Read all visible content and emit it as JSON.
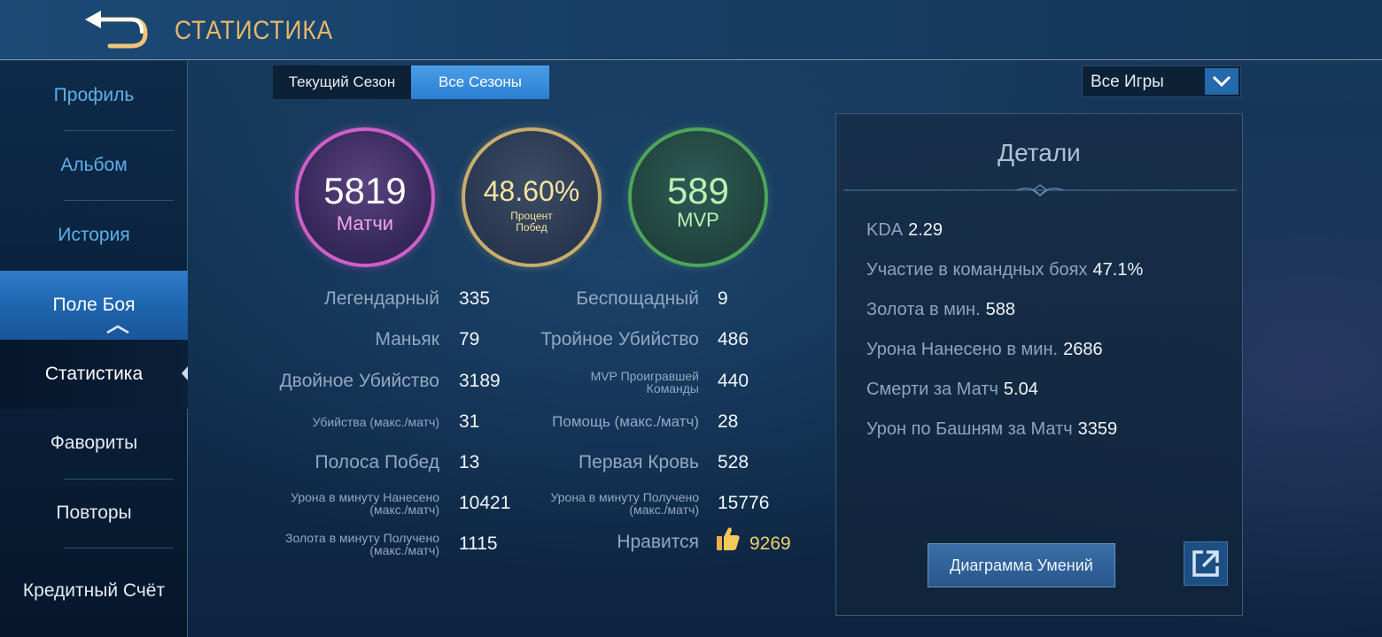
{
  "header": {
    "title": "Статистика",
    "back_icon": "back-arrow-icon"
  },
  "sidebar": {
    "items": [
      {
        "label": "Профиль"
      },
      {
        "label": "Альбом"
      },
      {
        "label": "История"
      },
      {
        "label": "Поле Боя"
      },
      {
        "label": "Статистика"
      },
      {
        "label": "Фавориты"
      },
      {
        "label": "Повторы"
      },
      {
        "label": "Кредитный Счёт"
      }
    ]
  },
  "tabs": [
    {
      "label": "Текущий Сезон",
      "active": false
    },
    {
      "label": "Все Сезоны",
      "active": true
    }
  ],
  "filter": {
    "value": "Все Игры"
  },
  "summary": {
    "matches": {
      "value": "5819",
      "label": "Матчи",
      "color": "#d05fc8"
    },
    "winrate": {
      "value": "48.60%",
      "label_line1": "Процент",
      "label_line2": "Побед",
      "color": "#c9ae6b"
    },
    "mvp": {
      "value": "589",
      "label": "MVP",
      "color": "#4ea55a"
    }
  },
  "stats": {
    "left": [
      {
        "label": "Легендарный",
        "value": "335"
      },
      {
        "label": "Маньяк",
        "value": "79"
      },
      {
        "label": "Двойное Убийство",
        "value": "3189"
      },
      {
        "label": "Убийства (макс./матч)",
        "value": "31"
      },
      {
        "label": "Полоса Побед",
        "value": "13"
      },
      {
        "label_line1": "Урона в минуту Нанесено",
        "label_line2": "(макс./матч)",
        "value": "10421"
      },
      {
        "label_line1": "Золота в минуту Получено",
        "label_line2": "(макс./матч)",
        "value": "1115"
      }
    ],
    "right": [
      {
        "label": "Беспощадный",
        "value": "9"
      },
      {
        "label": "Тройное Убийство",
        "value": "486"
      },
      {
        "label_line1": "MVP Проигравшей",
        "label_line2": "Команды",
        "value": "440"
      },
      {
        "label": "Помощь (макс./матч)",
        "value": "28"
      },
      {
        "label": "Первая Кровь",
        "value": "528"
      },
      {
        "label_line1": "Урона в минуту Получено",
        "label_line2": "(макс./матч)",
        "value": "15776"
      },
      {
        "label": "Нравится",
        "value": "9269",
        "icon": "thumbs-up-icon"
      }
    ]
  },
  "details": {
    "title": "Детали",
    "rows": [
      {
        "label": "KDA",
        "value": "2.29"
      },
      {
        "label": "Участие в командных боях",
        "value": "47.1%"
      },
      {
        "label": "Золота в мин.",
        "value": "588"
      },
      {
        "label": "Урона Нанесено в мин.",
        "value": "2686"
      },
      {
        "label": "Смерти за Матч",
        "value": "5.04"
      },
      {
        "label": "Урон по Башням за Матч",
        "value": "3359"
      }
    ],
    "skill_button": "Диаграмма Умений",
    "share_icon": "external-link-icon"
  }
}
